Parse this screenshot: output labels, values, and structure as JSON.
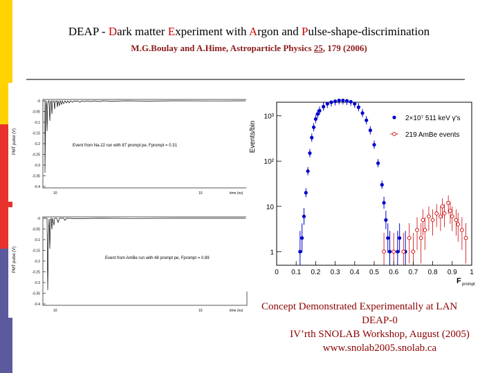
{
  "sidebar": {
    "colors": [
      "#ffd200",
      "#e8322d",
      "#5a5a9c"
    ]
  },
  "header": {
    "title_parts": [
      {
        "t": "DEAP - ",
        "cap": false
      },
      {
        "t": "D",
        "cap": true
      },
      {
        "t": "ark matter ",
        "cap": false
      },
      {
        "t": "E",
        "cap": true
      },
      {
        "t": "xperiment with ",
        "cap": false
      },
      {
        "t": "A",
        "cap": true
      },
      {
        "t": "rgon and ",
        "cap": false
      },
      {
        "t": "P",
        "cap": true
      },
      {
        "t": "ulse-shape-discrimination",
        "cap": false
      }
    ],
    "citation_pre": "M.G.Boulay and A.Hime, Astroparticle Physics ",
    "citation_vol": "25",
    "citation_post": ", 179 (2006)"
  },
  "panels": {
    "top": {
      "ylabel": "PMT pulse (V)",
      "xlabel": "time (ns)",
      "annotation": "Event from Na-22 run with 87 prompt pe, Fprompt = 0.31",
      "yticks": [
        "-0",
        "-0.05",
        "-0.1",
        "-0.15",
        "-0.2",
        "-0.25",
        "-0.3",
        "-0.35",
        "-0.4"
      ],
      "xticks": [
        "10",
        "10"
      ]
    },
    "bottom": {
      "ylabel": "PMT pulse (V)",
      "xlabel": "time (ns)",
      "annotation": "Event from AmBe run with 48 prompt pe, Fprompt = 0.89",
      "yticks": [
        "-0",
        "-0.05",
        "-0.1",
        "-0.15",
        "-0.2",
        "-0.25",
        "-0.3",
        "-0.35",
        "-0.4"
      ],
      "xticks": [
        "10",
        "10"
      ]
    }
  },
  "chart_data": {
    "type": "scatter",
    "xlabel": "F",
    "xlabel_sub": "prompt",
    "ylabel": "Events/bin",
    "xlim": [
      0,
      1.0
    ],
    "ylim": [
      0.5,
      2000
    ],
    "yscale": "log",
    "xticks": [
      "0",
      "0.1",
      "0.2",
      "0.3",
      "0.4",
      "0.5",
      "0.6",
      "0.7",
      "0.8",
      "0.9",
      "1"
    ],
    "yticks": [
      {
        "v": 1,
        "label": "1"
      },
      {
        "v": 10,
        "label": "10"
      },
      {
        "v": 100,
        "label": "10²"
      },
      {
        "v": 1000,
        "label": "10³"
      }
    ],
    "legend": [
      {
        "text": "2×10⁷ 511 keV γ's",
        "color": "#0000cc",
        "marker": "filled"
      },
      {
        "text": "219 AmBe events",
        "color": "#cc0000",
        "marker": "open"
      }
    ],
    "series": [
      {
        "name": "2×10⁷ 511 keV γ's",
        "color": "#0000cc",
        "points": [
          [
            0.12,
            1
          ],
          [
            0.13,
            2
          ],
          [
            0.14,
            6
          ],
          [
            0.15,
            20
          ],
          [
            0.16,
            60
          ],
          [
            0.17,
            150
          ],
          [
            0.18,
            330
          ],
          [
            0.19,
            560
          ],
          [
            0.2,
            850
          ],
          [
            0.21,
            1100
          ],
          [
            0.22,
            1300
          ],
          [
            0.24,
            1600
          ],
          [
            0.26,
            1850
          ],
          [
            0.28,
            2000
          ],
          [
            0.3,
            2100
          ],
          [
            0.32,
            2200
          ],
          [
            0.34,
            2200
          ],
          [
            0.36,
            2150
          ],
          [
            0.38,
            2050
          ],
          [
            0.4,
            1850
          ],
          [
            0.42,
            1550
          ],
          [
            0.44,
            1150
          ],
          [
            0.46,
            800
          ],
          [
            0.48,
            480
          ],
          [
            0.5,
            230
          ],
          [
            0.52,
            90
          ],
          [
            0.54,
            30
          ],
          [
            0.55,
            12
          ],
          [
            0.56,
            5
          ],
          [
            0.57,
            2
          ],
          [
            0.58,
            1
          ],
          [
            0.62,
            1
          ],
          [
            0.63,
            2
          ],
          [
            0.66,
            1
          ]
        ]
      },
      {
        "name": "219 AmBe events",
        "color": "#cc0000",
        "points": [
          [
            0.55,
            1
          ],
          [
            0.6,
            1
          ],
          [
            0.65,
            1
          ],
          [
            0.68,
            2
          ],
          [
            0.7,
            1
          ],
          [
            0.72,
            3
          ],
          [
            0.74,
            2
          ],
          [
            0.75,
            5
          ],
          [
            0.76,
            3
          ],
          [
            0.78,
            6
          ],
          [
            0.8,
            5
          ],
          [
            0.82,
            7
          ],
          [
            0.84,
            6
          ],
          [
            0.85,
            10
          ],
          [
            0.86,
            7
          ],
          [
            0.88,
            12
          ],
          [
            0.89,
            8
          ],
          [
            0.9,
            6
          ],
          [
            0.92,
            5
          ],
          [
            0.93,
            4
          ],
          [
            0.95,
            3
          ],
          [
            0.97,
            2
          ]
        ]
      }
    ]
  },
  "footer": {
    "lines": [
      "Concept Demonstrated Experimentally at LAN",
      "DEAP-0",
      "IV’rth SNOLAB Workshop, August (2005)",
      "www.snolab2005.snolab.ca"
    ]
  }
}
